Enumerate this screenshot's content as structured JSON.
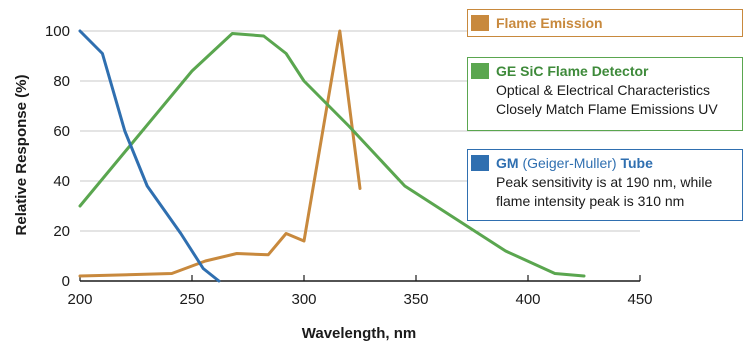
{
  "chart_data": {
    "type": "line",
    "xlabel": "Wavelength, nm",
    "ylabel": "Relative Response (%)",
    "xlim": [
      200,
      450
    ],
    "ylim": [
      0,
      100
    ],
    "xticks": [
      200,
      250,
      300,
      350,
      400,
      450
    ],
    "yticks": [
      0,
      20,
      40,
      60,
      80,
      100
    ],
    "grid": "horizontal",
    "legend_position": "right",
    "series": [
      {
        "name": "Flame Emission",
        "color": "#c8893d",
        "points": [
          [
            200,
            2
          ],
          [
            241,
            3
          ],
          [
            256,
            8
          ],
          [
            270,
            11
          ],
          [
            284,
            10.5
          ],
          [
            292,
            19
          ],
          [
            300,
            16
          ],
          [
            316,
            100
          ],
          [
            325,
            37
          ]
        ]
      },
      {
        "name": "GE SiC Flame Detector",
        "color": "#5aa64f",
        "points": [
          [
            200,
            30
          ],
          [
            225,
            57
          ],
          [
            250,
            84
          ],
          [
            268,
            99
          ],
          [
            282,
            98
          ],
          [
            292,
            91
          ],
          [
            300,
            80
          ],
          [
            320,
            62
          ],
          [
            345,
            38
          ],
          [
            390,
            12
          ],
          [
            412,
            3
          ],
          [
            425,
            2
          ]
        ]
      },
      {
        "name": "GM (Geiger-Muller) Tube",
        "color": "#2f6fb0",
        "points": [
          [
            200,
            100
          ],
          [
            210,
            91
          ],
          [
            220,
            60
          ],
          [
            230,
            38
          ],
          [
            245,
            19
          ],
          [
            255,
            5
          ],
          [
            262,
            0
          ]
        ]
      }
    ]
  },
  "legend": [
    {
      "title": "Flame Emission",
      "title_color": "#c8893d",
      "lines": []
    },
    {
      "title": "GE SiC Flame Detector",
      "title_color": "#3e8a3a",
      "lines": [
        "Optical & Electrical Characteristics",
        "Closely Match Flame Emissions UV"
      ]
    },
    {
      "title_a": "GM",
      "title_b": " (Geiger-Muller) ",
      "title_c": "Tube",
      "title_color": "#2f6fb0",
      "lines": [
        "Peak sensitivity is at 190 nm, while",
        "flame intensity peak is 310 nm"
      ]
    }
  ]
}
